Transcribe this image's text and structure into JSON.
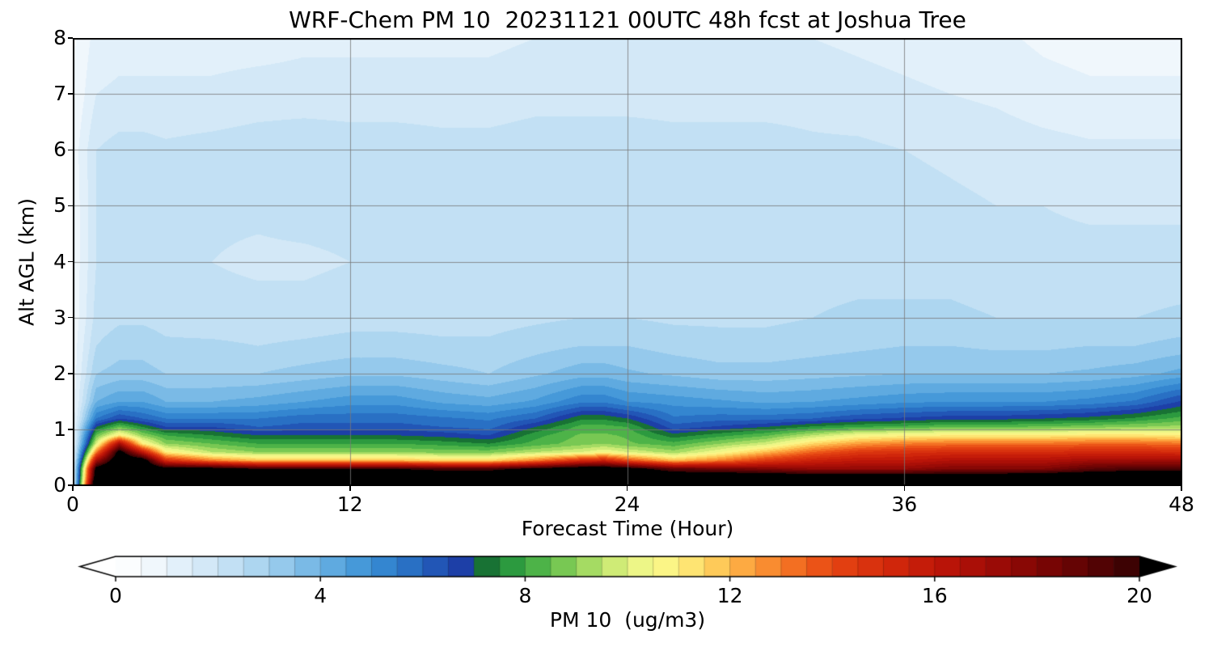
{
  "chart_data": {
    "type": "heatmap",
    "title": "WRF-Chem PM 10  20231121 00UTC 48h fcst at Joshua Tree",
    "xlabel": "Forecast Time (Hour)",
    "ylabel": "Alt AGL (km)",
    "xlim": [
      0,
      48
    ],
    "ylim": [
      0,
      8
    ],
    "x_ticks": [
      0,
      12,
      24,
      36,
      48
    ],
    "y_ticks": [
      0,
      1,
      2,
      3,
      4,
      5,
      6,
      7,
      8
    ],
    "grid": true,
    "x": [
      0,
      1,
      2,
      3,
      4,
      6,
      8,
      10,
      12,
      14,
      16,
      18,
      20,
      22,
      23,
      24,
      26,
      28,
      30,
      32,
      34,
      36,
      38,
      40,
      42,
      44,
      46,
      48
    ],
    "y": [
      0,
      0.15,
      0.3,
      0.45,
      0.6,
      0.75,
      0.9,
      1.05,
      1.2,
      1.5,
      2,
      2.5,
      3,
      4,
      5,
      6,
      7,
      8
    ],
    "values": [
      [
        1,
        24,
        25,
        25,
        25,
        25,
        25,
        25,
        25,
        25,
        25,
        25,
        25,
        25,
        25,
        25,
        25,
        25,
        25,
        25,
        25,
        25,
        25,
        25,
        25,
        25,
        25,
        25
      ],
      [
        0.9,
        22,
        24,
        23.5,
        23,
        22.5,
        22,
        22,
        22,
        22,
        22,
        22,
        22.5,
        23,
        23,
        22.5,
        22,
        22,
        22,
        21.5,
        21.5,
        21.5,
        21.5,
        21.5,
        22,
        22,
        22,
        22
      ],
      [
        0.9,
        21,
        23,
        22.5,
        21,
        21,
        20,
        20,
        20,
        20,
        19.5,
        19.5,
        20.5,
        21.5,
        21.5,
        21,
        19,
        18.5,
        18,
        17.5,
        17.5,
        17.5,
        18,
        18,
        18,
        19,
        19.5,
        19.5
      ],
      [
        0.8,
        17,
        22,
        21.5,
        15,
        13,
        12,
        12,
        12,
        12,
        11.5,
        11.5,
        13,
        15,
        15.5,
        14,
        12,
        13,
        14.5,
        15.5,
        16,
        16,
        16.5,
        16.5,
        16.5,
        17,
        17,
        17
      ],
      [
        0.8,
        13,
        21,
        16,
        11,
        9.5,
        9,
        9,
        9,
        9,
        8.8,
        8.8,
        9.5,
        10,
        10.5,
        10,
        9.2,
        10.5,
        12,
        13.5,
        14.5,
        14.8,
        15,
        15,
        15,
        15.2,
        15.2,
        15
      ],
      [
        0.8,
        10,
        17,
        11,
        9,
        8.5,
        8,
        8,
        8,
        8,
        7.8,
        7.5,
        8.2,
        8.8,
        9,
        8.6,
        8.2,
        9,
        9.8,
        11.5,
        12.5,
        13,
        13.2,
        13.2,
        13.2,
        13.4,
        13.4,
        13.2
      ],
      [
        0.8,
        8.5,
        11,
        9,
        8,
        7.5,
        7,
        7,
        7,
        7,
        6.8,
        6.5,
        7.8,
        8.6,
        8.6,
        8.4,
        7.2,
        7.8,
        8.4,
        9.5,
        10.5,
        10.8,
        11,
        11,
        11,
        11.2,
        11.2,
        11
      ],
      [
        0.8,
        7,
        8.5,
        7.5,
        6.5,
        6.5,
        6,
        6.2,
        6.2,
        6.2,
        6,
        5.8,
        7,
        8.2,
        8.2,
        8,
        6.2,
        6.6,
        7,
        7.6,
        8,
        8.2,
        8.5,
        8.5,
        8.6,
        8.8,
        9,
        9.2
      ],
      [
        0.7,
        5.5,
        6.5,
        6,
        5.5,
        5.5,
        5.5,
        5.8,
        5.8,
        5.8,
        5.6,
        5.4,
        6,
        7.4,
        7.4,
        7,
        5.6,
        5.8,
        5.8,
        6,
        6.4,
        6.6,
        6.8,
        6.8,
        7,
        7.2,
        7.6,
        8.2
      ],
      [
        0.7,
        4,
        4.5,
        4.5,
        4,
        4,
        4.2,
        4.5,
        4.8,
        4.8,
        4.4,
        4.2,
        4.6,
        5.4,
        5.4,
        5,
        4.8,
        4.6,
        4.4,
        4.5,
        4.7,
        4.9,
        5,
        5,
        5,
        5.2,
        5.6,
        6.6
      ],
      [
        0.7,
        3,
        3.2,
        3.2,
        3,
        3,
        3,
        3.2,
        3.4,
        3.4,
        3.2,
        3,
        3.4,
        3.8,
        3.8,
        3.6,
        3.4,
        3.2,
        3.2,
        3.3,
        3.4,
        3.5,
        3.5,
        3.5,
        3.5,
        3.6,
        3.8,
        4.2
      ],
      [
        0.7,
        2.5,
        2.8,
        2.8,
        2.6,
        2.6,
        2.5,
        2.6,
        2.7,
        2.7,
        2.6,
        2.6,
        2.8,
        3,
        3,
        3,
        2.8,
        2.7,
        2.7,
        2.8,
        2.9,
        3,
        3,
        2.9,
        2.9,
        3,
        3,
        3.2
      ],
      [
        0.6,
        2.2,
        2.4,
        2.4,
        2.3,
        2.2,
        2.2,
        2.2,
        2.3,
        2.3,
        2.3,
        2.3,
        2.4,
        2.5,
        2.5,
        2.5,
        2.4,
        2.4,
        2.4,
        2.5,
        2.6,
        2.6,
        2.6,
        2.5,
        2.5,
        2.5,
        2.5,
        2.6
      ],
      [
        0.6,
        2,
        2.2,
        2.2,
        2.1,
        2,
        1.9,
        1.9,
        2,
        2.1,
        2.1,
        2.1,
        2.2,
        2.2,
        2.2,
        2.2,
        2.2,
        2.2,
        2.2,
        2.3,
        2.3,
        2.3,
        2.3,
        2.2,
        2.2,
        2.2,
        2.2,
        2.2
      ],
      [
        0.6,
        2,
        2.2,
        2.2,
        2.1,
        2.1,
        2.1,
        2.2,
        2.2,
        2.2,
        2.2,
        2.2,
        2.3,
        2.3,
        2.3,
        2.3,
        2.2,
        2.2,
        2.2,
        2.2,
        2.2,
        2.2,
        2.1,
        2,
        2,
        1.9,
        1.9,
        1.9
      ],
      [
        0.7,
        2,
        2.2,
        2.2,
        2.1,
        2.2,
        2.3,
        2.4,
        2.3,
        2.3,
        2.2,
        2.2,
        2.3,
        2.3,
        2.3,
        2.3,
        2.2,
        2.2,
        2.2,
        2.1,
        2.1,
        2,
        1.9,
        1.8,
        1.7,
        1.6,
        1.6,
        1.6
      ],
      [
        0.5,
        1.5,
        1.6,
        1.6,
        1.6,
        1.6,
        1.7,
        1.7,
        1.7,
        1.7,
        1.7,
        1.7,
        1.8,
        1.8,
        1.8,
        1.8,
        1.8,
        1.8,
        1.8,
        1.8,
        1.7,
        1.6,
        1.5,
        1.4,
        1.2,
        1.1,
        1.1,
        1.1
      ],
      [
        0.4,
        1.2,
        1.3,
        1.3,
        1.3,
        1.3,
        1.3,
        1.4,
        1.4,
        1.4,
        1.4,
        1.4,
        1.5,
        1.5,
        1.5,
        1.5,
        1.5,
        1.5,
        1.5,
        1.5,
        1.4,
        1.3,
        1.2,
        1.1,
        0.9,
        0.8,
        0.8,
        0.8
      ]
    ],
    "colorbar": {
      "label": "PM 10  (ug/m3)",
      "ticks": [
        0,
        4,
        8,
        12,
        16,
        20
      ],
      "min": 0,
      "max": 20,
      "step": 0.5,
      "extend": "both",
      "under": "#ffffff",
      "over": "#000000",
      "stops": [
        [
          0,
          "#ffffff"
        ],
        [
          0.5,
          "#f6fafd"
        ],
        [
          1,
          "#e9f3fb"
        ],
        [
          1.5,
          "#dbecf8"
        ],
        [
          2,
          "#cbe4f6"
        ],
        [
          2.5,
          "#b8dbf2"
        ],
        [
          3,
          "#a2d0ee"
        ],
        [
          3.5,
          "#88c2e9"
        ],
        [
          4,
          "#6cb2e3"
        ],
        [
          4.5,
          "#51a2dd"
        ],
        [
          5,
          "#3b90d5"
        ],
        [
          5.5,
          "#2d7cca"
        ],
        [
          6,
          "#2563bd"
        ],
        [
          6.5,
          "#1f48ae"
        ],
        [
          6.9,
          "#1c3aa3"
        ],
        [
          7.1,
          "#14632f"
        ],
        [
          7.5,
          "#1f8c3b"
        ],
        [
          8,
          "#38a843"
        ],
        [
          8.5,
          "#61bd4c"
        ],
        [
          9,
          "#8ed25a"
        ],
        [
          9.5,
          "#bce46c"
        ],
        [
          10,
          "#e2f27f"
        ],
        [
          10.5,
          "#f8fa8e"
        ],
        [
          11,
          "#fdef7e"
        ],
        [
          11.5,
          "#fed966"
        ],
        [
          12,
          "#feba4c"
        ],
        [
          12.5,
          "#fb9a38"
        ],
        [
          13,
          "#f67d28"
        ],
        [
          13.5,
          "#ef601c"
        ],
        [
          14,
          "#e64612"
        ],
        [
          15,
          "#d52b0c"
        ],
        [
          16,
          "#c01708"
        ],
        [
          17,
          "#a30c06"
        ],
        [
          18,
          "#800604"
        ],
        [
          19,
          "#5c0304"
        ],
        [
          19.5,
          "#470203"
        ],
        [
          20,
          "#330102"
        ]
      ]
    }
  }
}
